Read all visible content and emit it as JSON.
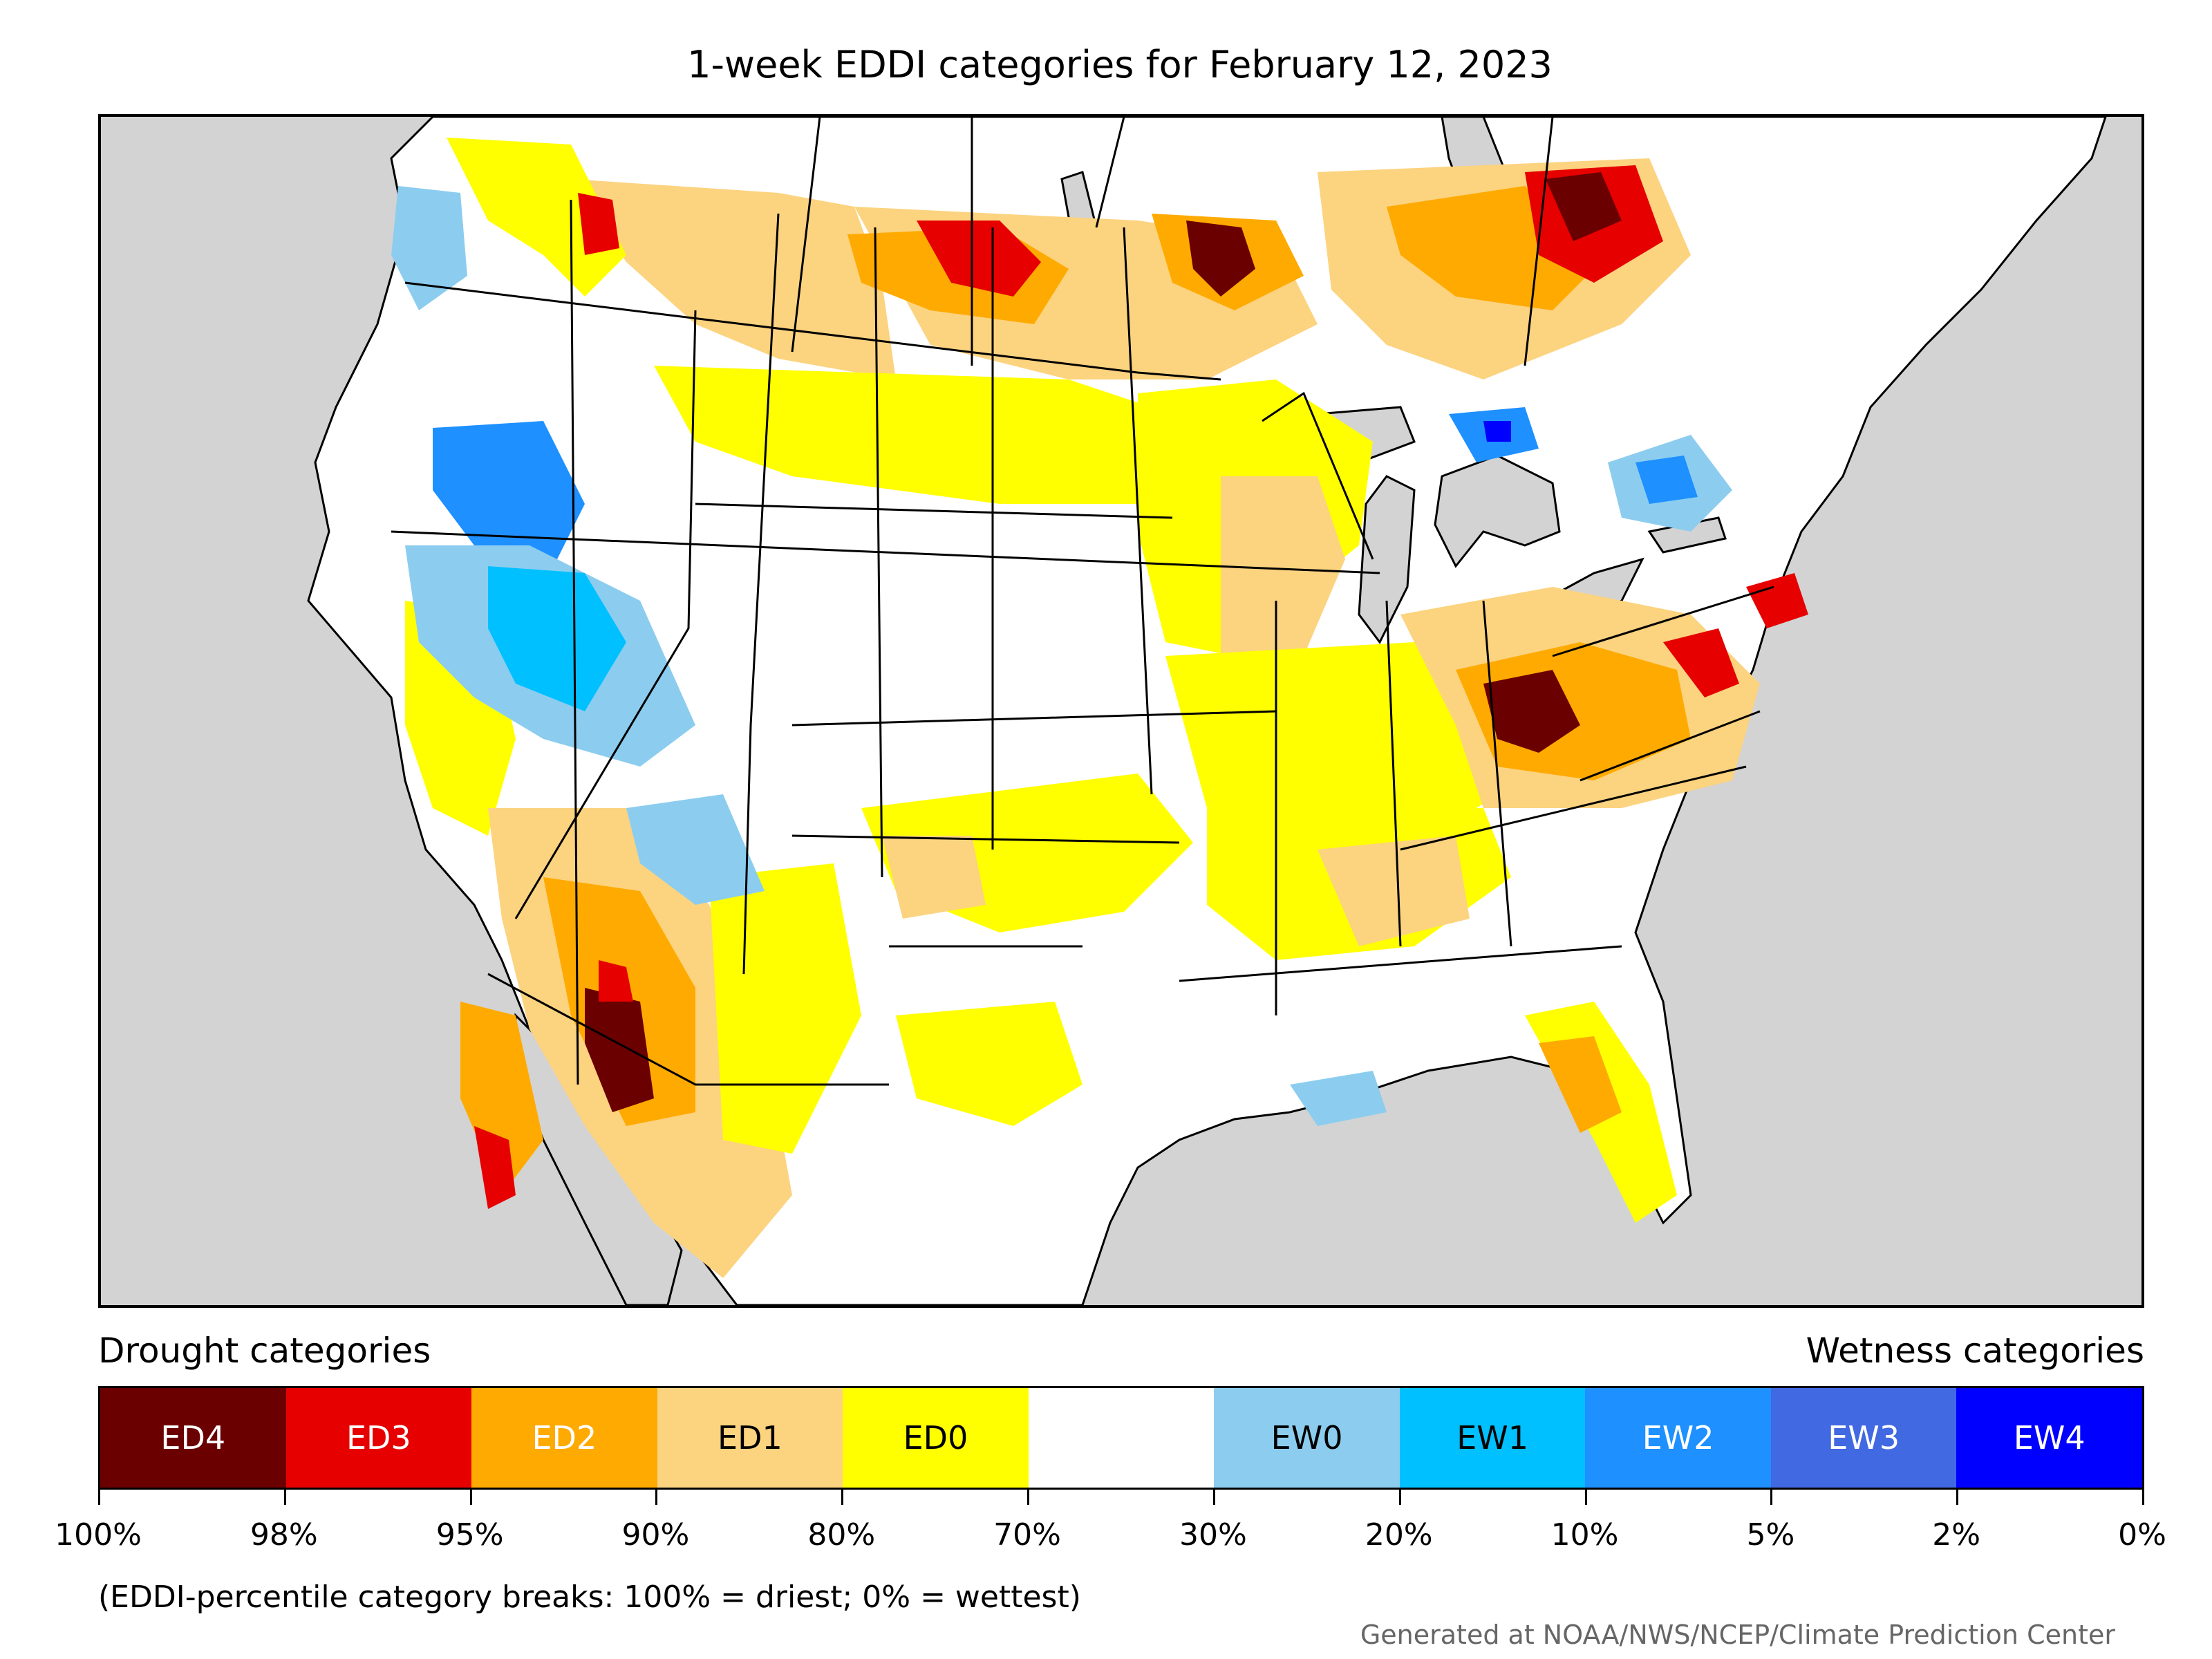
{
  "title": "1-week EDDI categories for February 12, 2023",
  "map": {
    "background_color": "#d3d3d3",
    "land_color": "#ffffff",
    "border_color": "#000000"
  },
  "legend": {
    "drought_heading": "Drought categories",
    "wetness_heading": "Wetness categories",
    "categories": [
      {
        "label": "ED4",
        "color": "#6b0000",
        "text_color": "#ffffff"
      },
      {
        "label": "ED3",
        "color": "#e60000",
        "text_color": "#ffffff"
      },
      {
        "label": "ED2",
        "color": "#ffaa00",
        "text_color": "#ffffff"
      },
      {
        "label": "ED1",
        "color": "#fcd37f",
        "text_color": "#000000"
      },
      {
        "label": "ED0",
        "color": "#ffff00",
        "text_color": "#000000"
      },
      {
        "label": "",
        "color": "#ffffff",
        "text_color": "#000000"
      },
      {
        "label": "EW0",
        "color": "#8ccdef",
        "text_color": "#000000"
      },
      {
        "label": "EW1",
        "color": "#00c0ff",
        "text_color": "#000000"
      },
      {
        "label": "EW2",
        "color": "#1e90ff",
        "text_color": "#ffffff"
      },
      {
        "label": "EW3",
        "color": "#4169e1",
        "text_color": "#ffffff"
      },
      {
        "label": "EW4",
        "color": "#0000ff",
        "text_color": "#ffffff"
      }
    ],
    "tick_labels": [
      "100%",
      "98%",
      "95%",
      "90%",
      "80%",
      "70%",
      "30%",
      "20%",
      "10%",
      "5%",
      "2%",
      "0%"
    ]
  },
  "note": "(EDDI-percentile category breaks: 100% = driest; 0% = wettest)",
  "credit": "Generated at NOAA/NWS/NCEP/Climate Prediction Center"
}
